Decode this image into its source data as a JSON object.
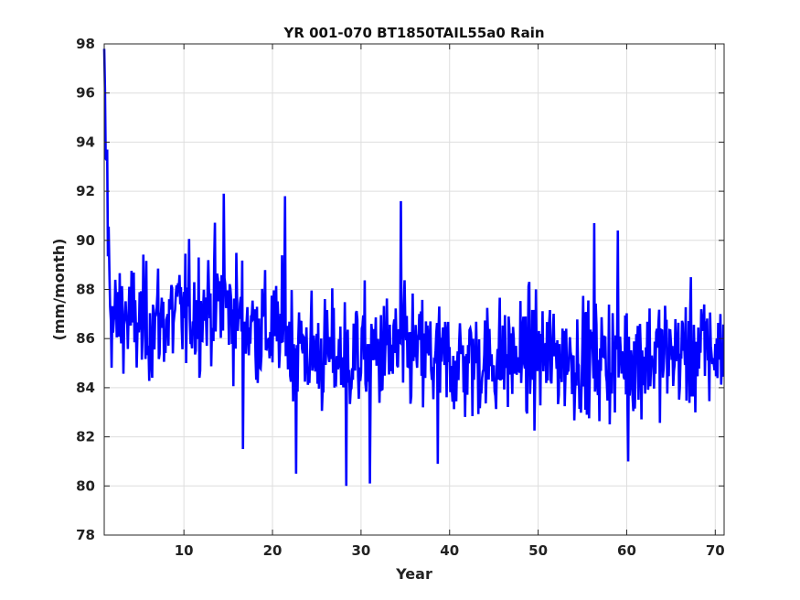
{
  "chart_data": {
    "type": "line",
    "title": "YR 001-070 BT1850TAIL55a0 Rain",
    "xlabel": "Year",
    "ylabel": "(mm/month)",
    "xlim": [
      1,
      71
    ],
    "ylim": [
      78,
      98
    ],
    "xticks": [
      10,
      20,
      30,
      40,
      50,
      60,
      70
    ],
    "yticks": [
      78,
      80,
      82,
      84,
      86,
      88,
      90,
      92,
      94,
      96,
      98
    ],
    "grid": true,
    "legend": "none",
    "series_color": "#0000ff",
    "series": [
      {
        "resolution": "monthly",
        "y_key_points": [
          [
            1.0,
            97.8
          ],
          [
            1.1,
            94.5
          ],
          [
            1.3,
            92.0
          ],
          [
            1.6,
            88.0
          ],
          [
            2.0,
            86.5
          ],
          [
            3.0,
            87.0
          ],
          [
            5.0,
            86.5
          ],
          [
            10.0,
            87.0
          ],
          [
            14.0,
            87.5
          ],
          [
            18.0,
            86.5
          ],
          [
            22.0,
            86.0
          ],
          [
            25.0,
            85.3
          ],
          [
            30.0,
            85.3
          ],
          [
            35.0,
            85.5
          ],
          [
            40.0,
            85.0
          ],
          [
            50.0,
            85.3
          ],
          [
            55.0,
            85.2
          ],
          [
            60.0,
            85.2
          ],
          [
            65.0,
            85.4
          ],
          [
            70.0,
            85.5
          ],
          [
            71.0,
            85.4
          ]
        ],
        "monthly_spread": 1.6,
        "extremes": [
          [
            1.02,
            97.8
          ],
          [
            1.35,
            93.7
          ],
          [
            14.5,
            91.9
          ],
          [
            16.7,
            81.5
          ],
          [
            21.4,
            91.8
          ],
          [
            22.7,
            80.5
          ],
          [
            28.3,
            80.0
          ],
          [
            31.0,
            80.1
          ],
          [
            34.5,
            91.6
          ],
          [
            38.7,
            80.9
          ],
          [
            56.3,
            90.7
          ],
          [
            59.0,
            90.4
          ],
          [
            60.2,
            81.0
          ]
        ]
      }
    ]
  }
}
